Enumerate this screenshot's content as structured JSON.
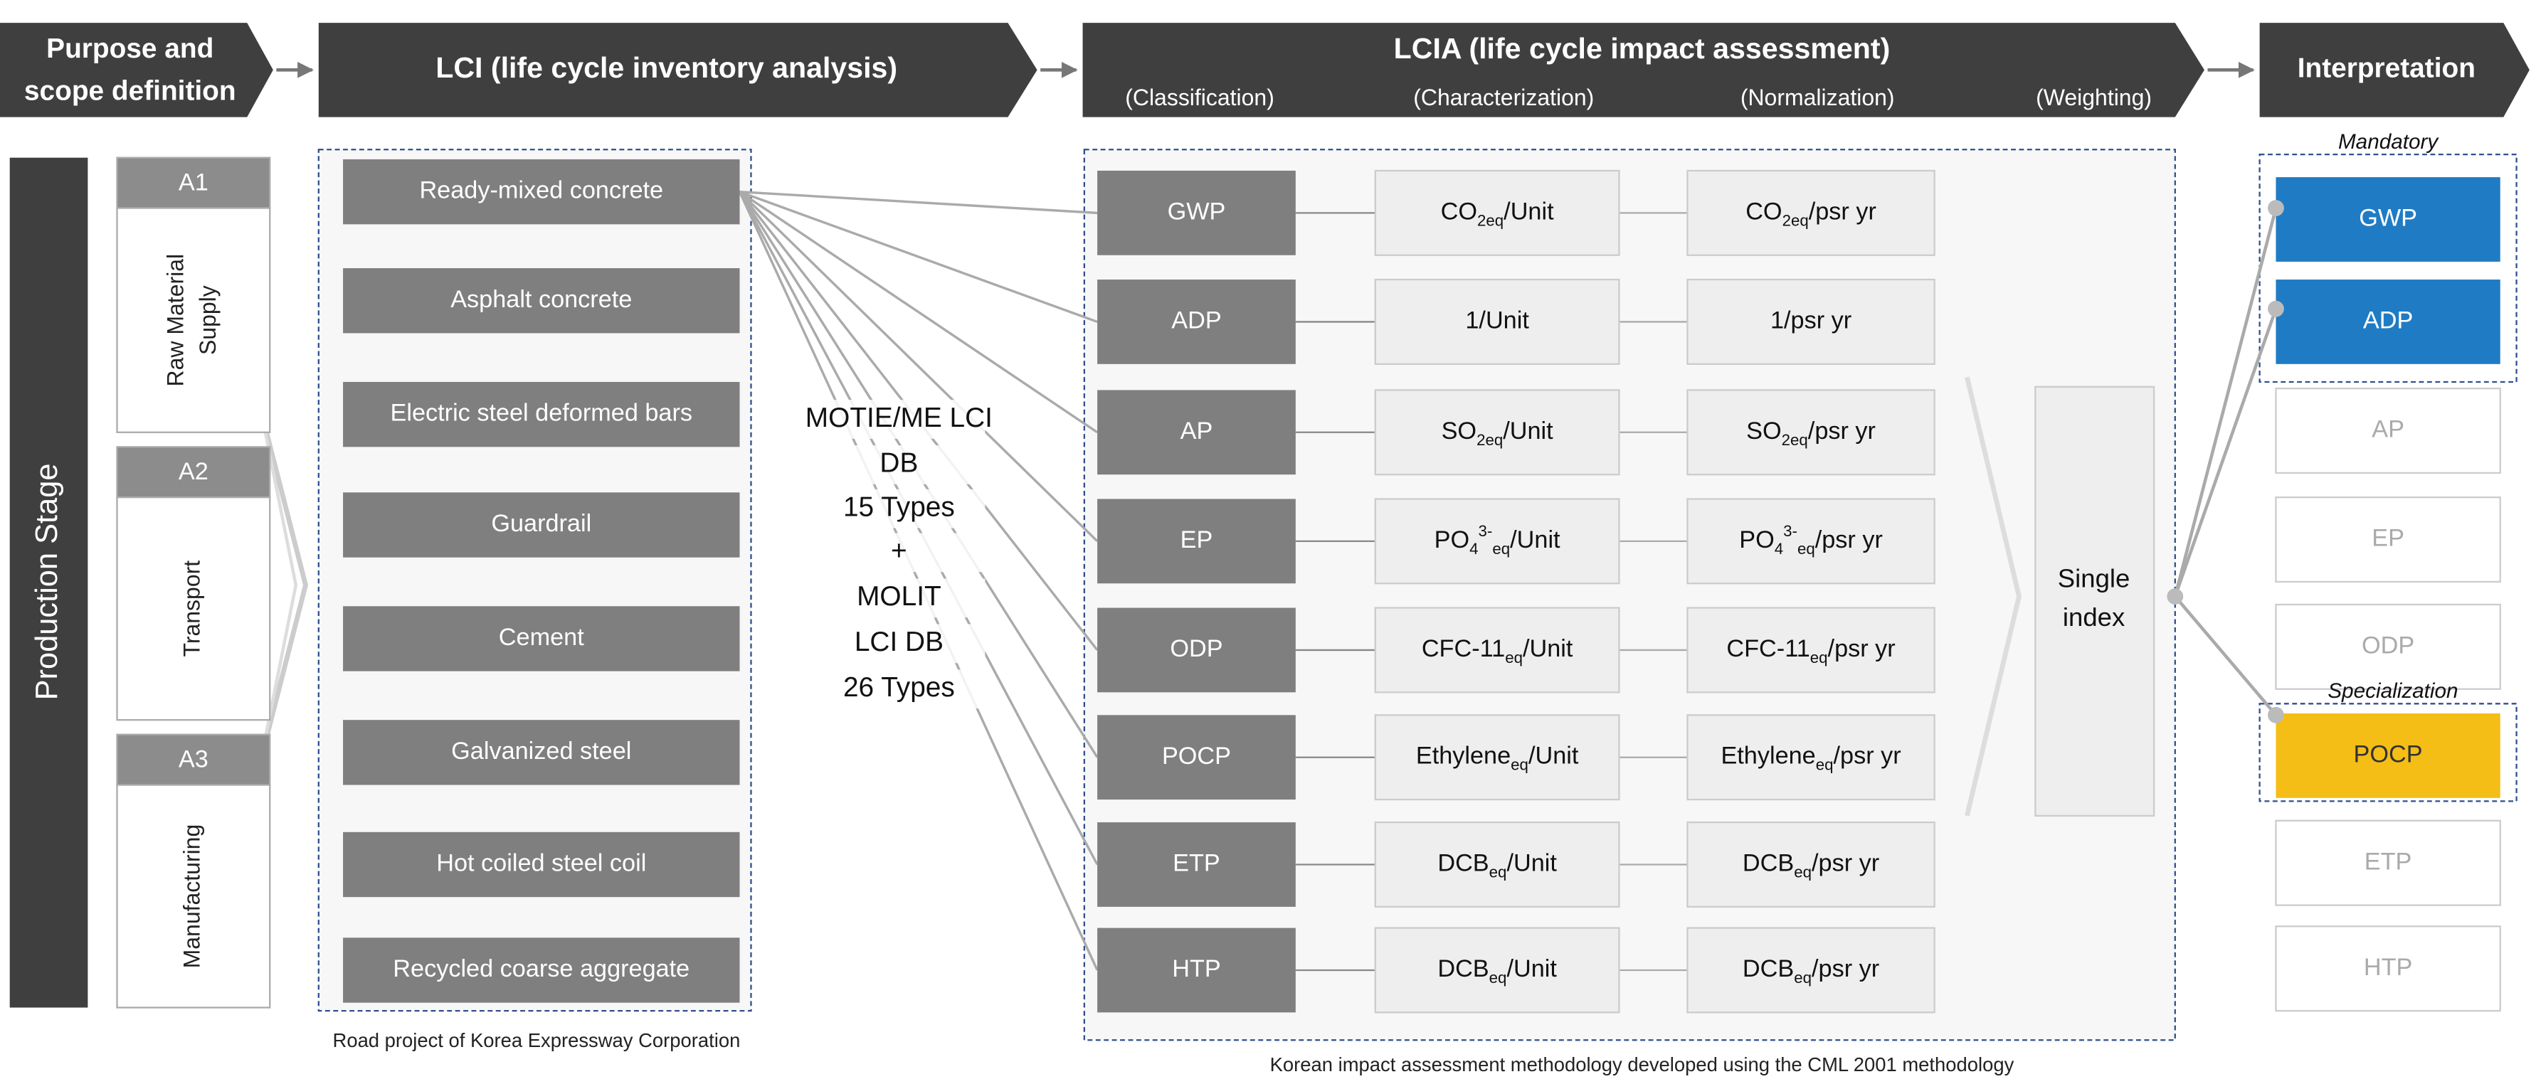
{
  "header": {
    "purpose": [
      "Purpose and",
      "scope definition"
    ],
    "lci": "LCI (life cycle inventory analysis)",
    "lcia": "LCIA (life cycle impact assessment)",
    "lcia_steps": [
      "(Classification)",
      "(Characterization)",
      "(Normalization)",
      "(Weighting)"
    ],
    "interpretation": "Interpretation"
  },
  "production_stage": {
    "title": "Production Stage",
    "modules": [
      {
        "code": "A1",
        "name": [
          "Raw Material",
          "Supply"
        ]
      },
      {
        "code": "A2",
        "name": [
          "Transport"
        ]
      },
      {
        "code": "A3",
        "name": [
          "Manufacturing"
        ]
      }
    ]
  },
  "lci": {
    "items": [
      "Ready-mixed concrete",
      "Asphalt concrete",
      "Electric steel deformed bars",
      "Guardrail",
      "Cement",
      "Galvanized steel",
      "Hot coiled steel coil",
      "Recycled coarse aggregate"
    ],
    "caption": "Road project of Korea Expressway Corporation"
  },
  "db_note": [
    "MOTIE/ME LCI",
    "DB",
    "15 Types",
    "+",
    "MOLIT",
    "LCI DB",
    "26 Types"
  ],
  "lcia": {
    "categories": [
      {
        "name": "GWP",
        "characterization": [
          {
            "t": "CO"
          },
          {
            "sub": "2eq"
          },
          {
            "t": "/Unit"
          }
        ],
        "normalization": [
          {
            "t": "CO"
          },
          {
            "sub": "2eq"
          },
          {
            "t": "/psr yr"
          }
        ]
      },
      {
        "name": "ADP",
        "characterization": [
          {
            "t": "1/Unit"
          }
        ],
        "normalization": [
          {
            "t": "1/psr yr"
          }
        ]
      },
      {
        "name": "AP",
        "characterization": [
          {
            "t": "SO"
          },
          {
            "sub": "2eq"
          },
          {
            "t": "/Unit"
          }
        ],
        "normalization": [
          {
            "t": "SO"
          },
          {
            "sub": "2eq"
          },
          {
            "t": "/psr yr"
          }
        ]
      },
      {
        "name": "EP",
        "characterization": [
          {
            "t": "PO"
          },
          {
            "sub": "4"
          },
          {
            "sup": "3-"
          },
          {
            "sub": "eq"
          },
          {
            "t": "/Unit"
          }
        ],
        "normalization": [
          {
            "t": "PO"
          },
          {
            "sub": "4"
          },
          {
            "sup": "3-"
          },
          {
            "sub": "eq"
          },
          {
            "t": "/psr yr"
          }
        ]
      },
      {
        "name": "ODP",
        "characterization": [
          {
            "t": "CFC-11"
          },
          {
            "sub": "eq"
          },
          {
            "t": "/Unit"
          }
        ],
        "normalization": [
          {
            "t": "CFC-11"
          },
          {
            "sub": "eq"
          },
          {
            "t": "/psr yr"
          }
        ]
      },
      {
        "name": "POCP",
        "characterization": [
          {
            "t": "Ethylene"
          },
          {
            "sub": "eq"
          },
          {
            "t": "/Unit"
          }
        ],
        "normalization": [
          {
            "t": "Ethylene"
          },
          {
            "sub": "eq"
          },
          {
            "t": "/psr yr"
          }
        ]
      },
      {
        "name": "ETP",
        "characterization": [
          {
            "t": "DCB"
          },
          {
            "sub": "eq"
          },
          {
            "t": "/Unit"
          }
        ],
        "normalization": [
          {
            "t": "DCB"
          },
          {
            "sub": "eq"
          },
          {
            "t": "/psr yr"
          }
        ]
      },
      {
        "name": "HTP",
        "characterization": [
          {
            "t": "DCB"
          },
          {
            "sub": "eq"
          },
          {
            "t": "/Unit"
          }
        ],
        "normalization": [
          {
            "t": "DCB"
          },
          {
            "sub": "eq"
          },
          {
            "t": "/psr yr"
          }
        ]
      }
    ],
    "weighting": [
      "Single",
      "index"
    ],
    "caption": "Korean impact assessment methodology developed using the CML 2001 methodology"
  },
  "interpretation": {
    "mandatory_label": "Mandatory",
    "specialization_label": "Specialization",
    "categories": [
      "GWP",
      "ADP",
      "AP",
      "EP",
      "ODP",
      "POCP",
      "ETP",
      "HTP"
    ]
  }
}
